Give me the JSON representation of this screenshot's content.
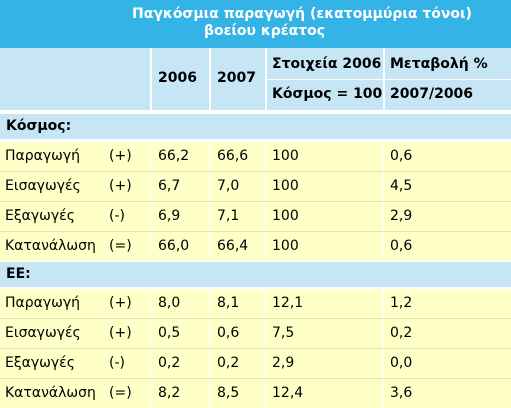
{
  "title": {
    "line1": "Παγκόσμια παραγωγή (εκατομμύρια τόνοι)",
    "line2": "βοείου κρέατος"
  },
  "header": {
    "col_2006": "2006",
    "col_2007": "2007",
    "index_top": "Στοιχεία 2006",
    "index_bottom": "Κόσμος = 100",
    "change_top": "Μεταβολή %",
    "change_bottom": "2007/2006"
  },
  "sections": [
    {
      "label": "Κόσμος:",
      "rows": [
        {
          "name": "Παραγωγή",
          "sign": "(+)",
          "y2006": "66,2",
          "y2007": "66,6",
          "index": "100",
          "change": "0,6"
        },
        {
          "name": "Εισαγωγές",
          "sign": "(+)",
          "y2006": "6,7",
          "y2007": "7,0",
          "index": "100",
          "change": "4,5"
        },
        {
          "name": "Εξαγωγές",
          "sign": "(-)",
          "y2006": "6,9",
          "y2007": "7,1",
          "index": "100",
          "change": "2,9"
        },
        {
          "name": "Κατανάλωση",
          "sign": "(=)",
          "y2006": "66,0",
          "y2007": "66,4",
          "index": "100",
          "change": "0,6"
        }
      ]
    },
    {
      "label": "ΕΕ:",
      "rows": [
        {
          "name": "Παραγωγή",
          "sign": "(+)",
          "y2006": "8,0",
          "y2007": "8,1",
          "index": "12,1",
          "change": "1,2"
        },
        {
          "name": "Εισαγωγές",
          "sign": "(+)",
          "y2006": "0,5",
          "y2007": "0,6",
          "index": "7,5",
          "change": "0,2"
        },
        {
          "name": "Εξαγωγές",
          "sign": "(-)",
          "y2006": "0,2",
          "y2007": "0,2",
          "index": "2,9",
          "change": "0,0"
        },
        {
          "name": "Κατανάλωση",
          "sign": "(=)",
          "y2006": "8,2",
          "y2007": "8,5",
          "index": "12,4",
          "change": "3,6"
        }
      ]
    }
  ],
  "colors": {
    "title_bg": "#34b3e6",
    "header_bg": "#c6e6f5",
    "row_bg": "#ffffc8"
  }
}
